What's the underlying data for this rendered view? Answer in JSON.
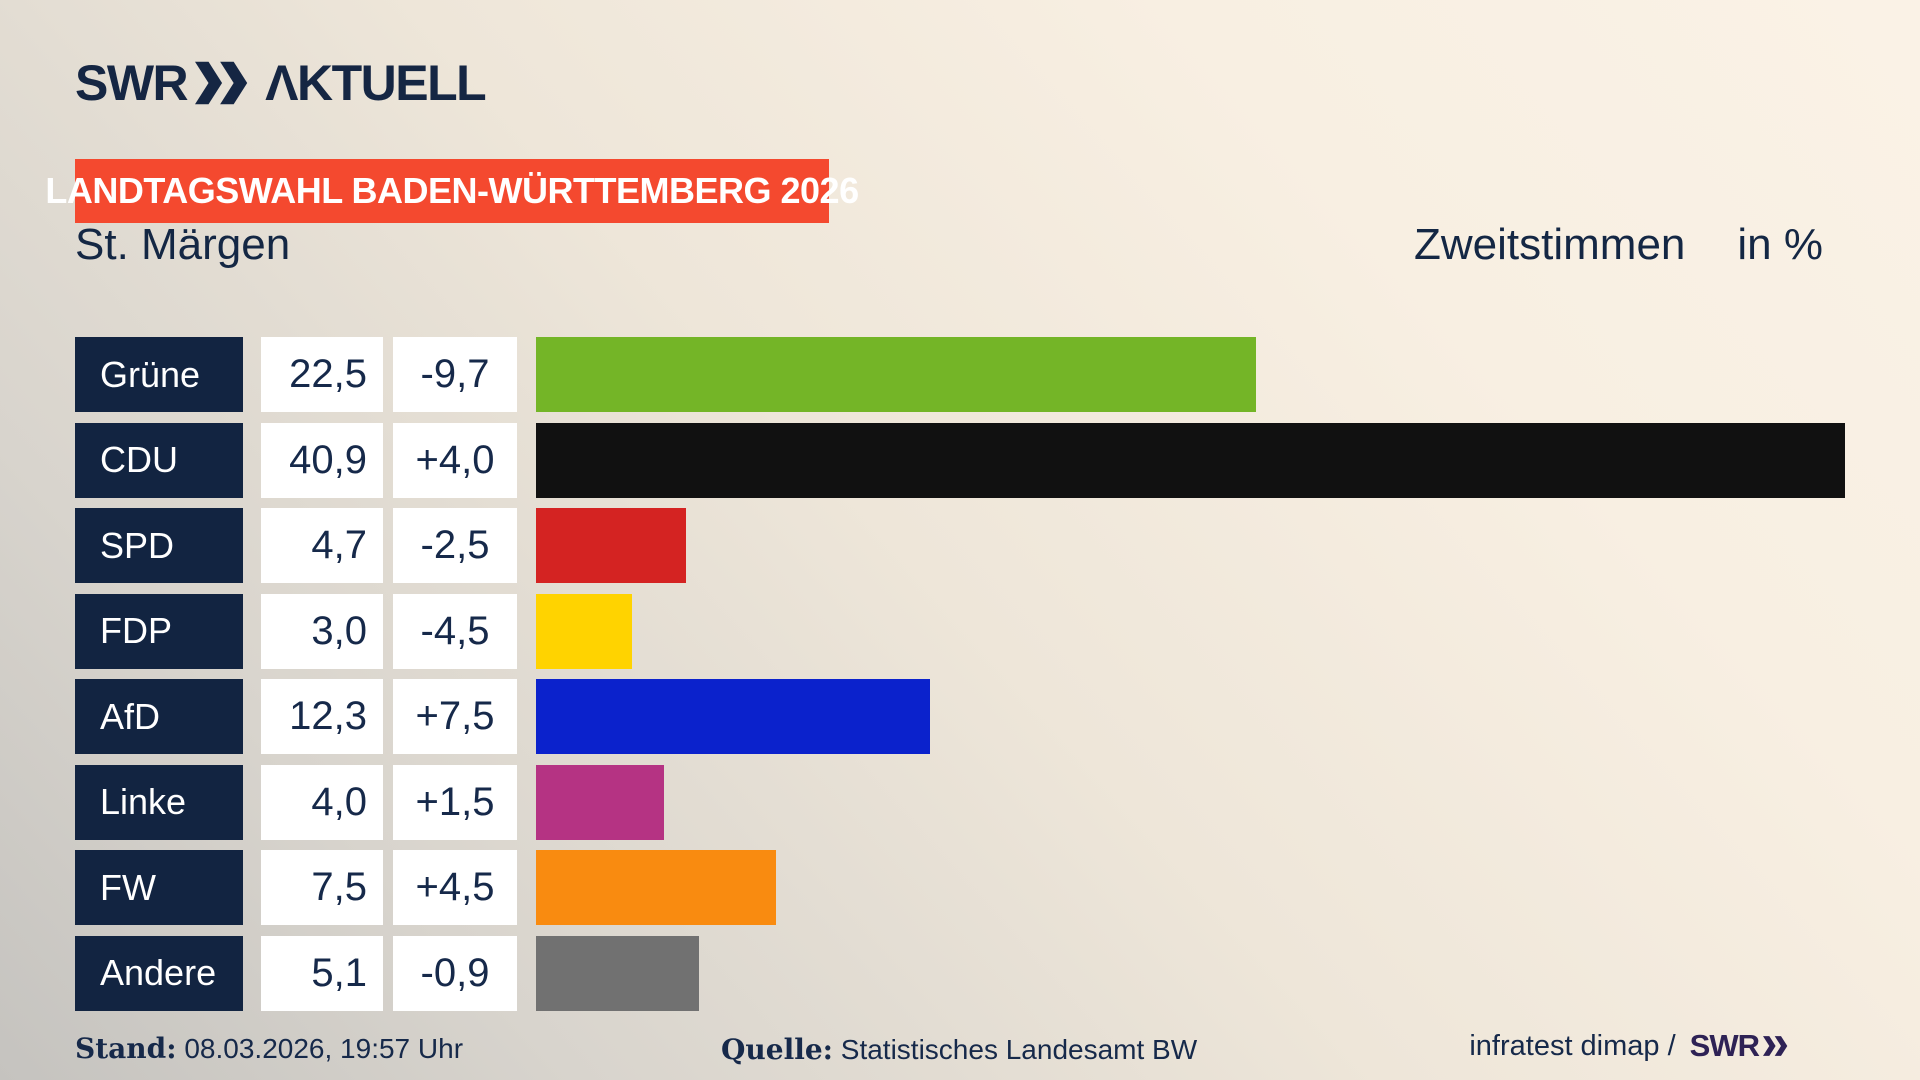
{
  "brand": {
    "logo_swr": "SWR",
    "logo_aktuell": "ΛKTUELL"
  },
  "banner": {
    "text": "LANDTAGSWAHL BADEN-WÜRTTEMBERG 2026",
    "bg": "#f4492f"
  },
  "title": {
    "location": "St. Märgen",
    "measure": "Zweitstimmen",
    "unit": "in %"
  },
  "chart_data": {
    "type": "bar",
    "orientation": "horizontal",
    "title": "St. Märgen",
    "subtitle": "Zweitstimmen in %",
    "categories": [
      "Grüne",
      "CDU",
      "SPD",
      "FDP",
      "AfD",
      "Linke",
      "FW",
      "Andere"
    ],
    "values": [
      22.5,
      40.9,
      4.7,
      3.0,
      12.3,
      4.0,
      7.5,
      5.1
    ],
    "value_labels": [
      "22,5",
      "40,9",
      "4,7",
      "3,0",
      "12,3",
      "4,0",
      "7,5",
      "5,1"
    ],
    "change_labels": [
      "-9,7",
      "+4,0",
      "-2,5",
      "-4,5",
      "+7,5",
      "+1,5",
      "+4,5",
      "-0,9"
    ],
    "bar_colors": [
      "#74b527",
      "#111111",
      "#d42322",
      "#ffd300",
      "#0b22cc",
      "#b53383",
      "#f98b10",
      "#717171"
    ],
    "xlim": [
      0,
      41
    ],
    "grid": false,
    "legend": false
  },
  "footer": {
    "stand_label": "Stand:",
    "stand_value": " 08.03.2026, 19:57 Uhr",
    "source_label": "Quelle:",
    "source_value": " Statistisches Landesamt BW",
    "credit_text": "infratest dimap /",
    "credit_brand": "SWR"
  },
  "colors": {
    "navy_box": "#122441",
    "text_navy": "#16294a",
    "logo_navy": "#152643",
    "banner_red": "#f4492f",
    "credit_purple": "#2e2255",
    "background_cream": "#faf2e6",
    "background_gray": "#c5c3bf"
  }
}
